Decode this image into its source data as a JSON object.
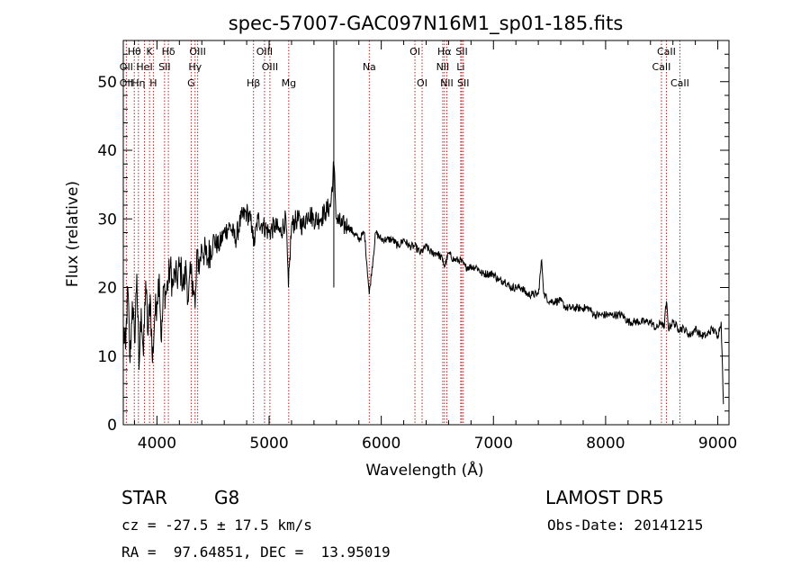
{
  "chart_data": {
    "type": "line",
    "title": "spec-57007-GAC097N16M1_sp01-185.fits",
    "xlabel": "Wavelength (Å)",
    "ylabel": "Flux (relative)",
    "xlim": [
      3700,
      9100
    ],
    "ylim": [
      0,
      56
    ],
    "xticks": [
      4000,
      5000,
      6000,
      7000,
      8000,
      9000
    ],
    "yticks": [
      0,
      10,
      20,
      30,
      40,
      50
    ],
    "grid": false,
    "line_color": "#000000",
    "marker_color": "#b22222",
    "series": [
      {
        "x": [
          3700,
          3720,
          3740,
          3760,
          3780,
          3800,
          3820,
          3840,
          3860,
          3880,
          3900,
          3920,
          3940,
          3960,
          3980,
          4000,
          4020,
          4040,
          4060,
          4080,
          4100,
          4120,
          4140,
          4160,
          4180,
          4200,
          4220,
          4240,
          4260,
          4280,
          4300,
          4320,
          4340,
          4360,
          4380,
          4400,
          4450,
          4500,
          4550,
          4600,
          4650,
          4700,
          4750,
          4800,
          4850,
          4861,
          4900,
          4950,
          5000,
          5050,
          5100,
          5150,
          5172,
          5200,
          5250,
          5300,
          5350,
          5400,
          5450,
          5500,
          5550,
          5577,
          5600,
          5650,
          5700,
          5750,
          5800,
          5850,
          5893,
          5950,
          6000,
          6050,
          6100,
          6150,
          6200,
          6250,
          6300,
          6350,
          6400,
          6450,
          6500,
          6550,
          6563,
          6600,
          6650,
          6700,
          6750,
          6800,
          6850,
          6900,
          6950,
          7000,
          7050,
          7100,
          7150,
          7200,
          7250,
          7300,
          7350,
          7400,
          7430,
          7450,
          7500,
          7550,
          7600,
          7650,
          7700,
          7750,
          7800,
          7850,
          7900,
          7950,
          8000,
          8050,
          8100,
          8150,
          8200,
          8250,
          8300,
          8350,
          8400,
          8450,
          8500,
          8520,
          8542,
          8560,
          8600,
          8650,
          8700,
          8750,
          8800,
          8850,
          8900,
          8950,
          9000,
          9030,
          9050
        ],
        "y": [
          14,
          11,
          20,
          9,
          18,
          12,
          22,
          8,
          17,
          10,
          21,
          13,
          19,
          9,
          16,
          18,
          22,
          12,
          20,
          19,
          21,
          23,
          20,
          22,
          21,
          23,
          22,
          20,
          23,
          18,
          22,
          21,
          17,
          25,
          23,
          26,
          24,
          27,
          26,
          28,
          29,
          27,
          30,
          31,
          29,
          26,
          30,
          29,
          28,
          29,
          28,
          30,
          20,
          29,
          30,
          29,
          31,
          30,
          30,
          31,
          32,
          38,
          30,
          29,
          29,
          28,
          27,
          28,
          19,
          28,
          27,
          27,
          27,
          26,
          27,
          26,
          26,
          25,
          26,
          25,
          25,
          24,
          23,
          25,
          24,
          24,
          23,
          23,
          23,
          22,
          22,
          22,
          21,
          21,
          20,
          20,
          20,
          19,
          19,
          19,
          24,
          19,
          18,
          18,
          18,
          17,
          17,
          17,
          17,
          17,
          16,
          16,
          16,
          16,
          16,
          16,
          15,
          15,
          15,
          15,
          15,
          14,
          15,
          14,
          18,
          14,
          15,
          14,
          14,
          13,
          14,
          13,
          13,
          14,
          13,
          15,
          3
        ]
      }
    ],
    "lines": [
      {
        "label": "Hθ",
        "x": 3798,
        "row": 1
      },
      {
        "label": "OII",
        "x": 3727,
        "row": 2
      },
      {
        "label": "OII",
        "x": 3727,
        "row": 3
      },
      {
        "label": "Hη",
        "x": 3835,
        "row": 3
      },
      {
        "label": "K",
        "x": 3934,
        "row": 1
      },
      {
        "label": "HeI",
        "x": 3889,
        "row": 2
      },
      {
        "label": "H",
        "x": 3968,
        "row": 3
      },
      {
        "label": "Hδ",
        "x": 4102,
        "row": 1
      },
      {
        "label": "SII",
        "x": 4068,
        "row": 2
      },
      {
        "label": "OIII",
        "x": 4363,
        "row": 1
      },
      {
        "label": "Hγ",
        "x": 4340,
        "row": 2
      },
      {
        "label": "G",
        "x": 4305,
        "row": 3
      },
      {
        "label": "OIII",
        "x": 4959,
        "row": 1
      },
      {
        "label": "OIII",
        "x": 5007,
        "row": 2
      },
      {
        "label": "Hβ",
        "x": 4861,
        "row": 3
      },
      {
        "label": "Mg",
        "x": 5175,
        "row": 3
      },
      {
        "label": "Na",
        "x": 5893,
        "row": 2
      },
      {
        "label": "OI",
        "x": 6300,
        "row": 1
      },
      {
        "label": "OI",
        "x": 6364,
        "row": 3
      },
      {
        "label": "Hα",
        "x": 6563,
        "row": 1
      },
      {
        "label": "NII",
        "x": 6548,
        "row": 2
      },
      {
        "label": "NII",
        "x": 6584,
        "row": 3
      },
      {
        "label": "SII",
        "x": 6717,
        "row": 1
      },
      {
        "label": "Li",
        "x": 6708,
        "row": 2
      },
      {
        "label": "SII",
        "x": 6731,
        "row": 3
      },
      {
        "label": "CaII",
        "x": 8542,
        "row": 1
      },
      {
        "label": "CaII",
        "x": 8498,
        "row": 2
      },
      {
        "label": "CaII",
        "x": 8662,
        "row": 3
      }
    ],
    "skyline_x": 5577
  },
  "info": {
    "object_class": "STAR",
    "subclass": "G8",
    "survey": "LAMOST DR5",
    "cz": "cz = -27.5 ± 17.5 km/s",
    "obs_date": "Obs-Date: 20141215",
    "coords": "RA =  97.64851, DEC =  13.95019"
  }
}
